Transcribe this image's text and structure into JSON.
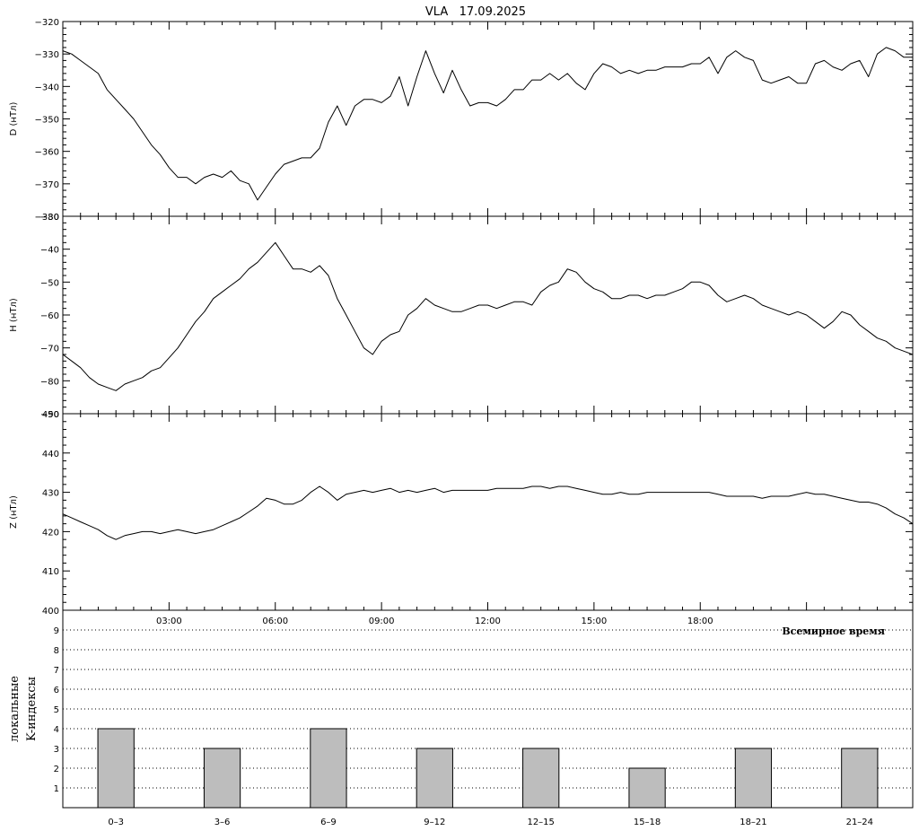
{
  "title": "VLA   17.09.2025",
  "time_axis": {
    "label": "Всемирное время",
    "range_hours": [
      0,
      24
    ],
    "ticks": [
      3,
      6,
      9,
      12,
      15,
      18
    ],
    "tick_labels": [
      "03:00",
      "06:00",
      "09:00",
      "12:00",
      "15:00",
      "18:00"
    ]
  },
  "colors": {
    "line": "#000000",
    "bar_fill": "#bdbdbd",
    "bar_stroke": "#000000",
    "background": "#ffffff"
  },
  "chart_data": [
    {
      "type": "line",
      "ylabel": "D (нТл)",
      "ylim": [
        -380,
        -320
      ],
      "y_ticks": [
        -380,
        -370,
        -360,
        -350,
        -340,
        -330,
        -320
      ],
      "x": [
        0,
        0.25,
        0.5,
        0.75,
        1,
        1.25,
        1.5,
        1.75,
        2,
        2.25,
        2.5,
        2.75,
        3,
        3.25,
        3.5,
        3.75,
        4,
        4.25,
        4.5,
        4.75,
        5,
        5.25,
        5.5,
        5.75,
        6,
        6.25,
        6.5,
        6.75,
        7,
        7.25,
        7.5,
        7.75,
        8,
        8.25,
        8.5,
        8.75,
        9,
        9.25,
        9.5,
        9.75,
        10,
        10.25,
        10.5,
        10.75,
        11,
        11.25,
        11.5,
        11.75,
        12,
        12.25,
        12.5,
        12.75,
        13,
        13.25,
        13.5,
        13.75,
        14,
        14.25,
        14.5,
        14.75,
        15,
        15.25,
        15.5,
        15.75,
        16,
        16.25,
        16.5,
        16.75,
        17,
        17.25,
        17.5,
        17.75,
        18,
        18.25,
        18.5,
        18.75,
        19,
        19.25,
        19.5,
        19.75,
        20,
        20.25,
        20.5,
        20.75,
        21,
        21.25,
        21.5,
        21.75,
        22,
        22.25,
        22.5,
        22.75,
        23,
        23.25,
        23.5,
        23.75,
        24
      ],
      "values": [
        -329,
        -330,
        -332,
        -334,
        -336,
        -341,
        -344,
        -347,
        -350,
        -354,
        -358,
        -361,
        -365,
        -368,
        -368,
        -370,
        -368,
        -367,
        -368,
        -366,
        -369,
        -370,
        -375,
        -371,
        -367,
        -364,
        -363,
        -362,
        -362,
        -359,
        -351,
        -346,
        -352,
        -346,
        -344,
        -344,
        -345,
        -343,
        -337,
        -346,
        -337,
        -329,
        -336,
        -342,
        -335,
        -341,
        -346,
        -345,
        -345,
        -346,
        -344,
        -341,
        -341,
        -338,
        -338,
        -336,
        -338,
        -336,
        -339,
        -341,
        -336,
        -333,
        -334,
        -336,
        -335,
        -336,
        -335,
        -335,
        -334,
        -334,
        -334,
        -333,
        -333,
        -331,
        -336,
        -331,
        -329,
        -331,
        -332,
        -338,
        -339,
        -338,
        -337,
        -339,
        -339,
        -333,
        -332,
        -334,
        -335,
        -333,
        -332,
        -337,
        -330,
        -328,
        -329,
        -331,
        -331
      ]
    },
    {
      "type": "line",
      "ylabel": "H (нТл)",
      "ylim": [
        -90,
        -30
      ],
      "y_ticks": [
        -90,
        -80,
        -70,
        -60,
        -50,
        -40,
        -30
      ],
      "x": [
        0,
        0.25,
        0.5,
        0.75,
        1,
        1.25,
        1.5,
        1.75,
        2,
        2.25,
        2.5,
        2.75,
        3,
        3.25,
        3.5,
        3.75,
        4,
        4.25,
        4.5,
        4.75,
        5,
        5.25,
        5.5,
        5.75,
        6,
        6.25,
        6.5,
        6.75,
        7,
        7.25,
        7.5,
        7.75,
        8,
        8.25,
        8.5,
        8.75,
        9,
        9.25,
        9.5,
        9.75,
        10,
        10.25,
        10.5,
        10.75,
        11,
        11.25,
        11.5,
        11.75,
        12,
        12.25,
        12.5,
        12.75,
        13,
        13.25,
        13.5,
        13.75,
        14,
        14.25,
        14.5,
        14.75,
        15,
        15.25,
        15.5,
        15.75,
        16,
        16.25,
        16.5,
        16.75,
        17,
        17.25,
        17.5,
        17.75,
        18,
        18.25,
        18.5,
        18.75,
        19,
        19.25,
        19.5,
        19.75,
        20,
        20.25,
        20.5,
        20.75,
        21,
        21.25,
        21.5,
        21.75,
        22,
        22.25,
        22.5,
        22.75,
        23,
        23.25,
        23.5,
        23.75,
        24
      ],
      "values": [
        -72,
        -74,
        -76,
        -79,
        -81,
        -82,
        -83,
        -81,
        -80,
        -79,
        -77,
        -76,
        -73,
        -70,
        -66,
        -62,
        -59,
        -55,
        -53,
        -51,
        -49,
        -46,
        -44,
        -41,
        -38,
        -42,
        -46,
        -46,
        -47,
        -45,
        -48,
        -55,
        -60,
        -65,
        -70,
        -72,
        -68,
        -66,
        -65,
        -60,
        -58,
        -55,
        -57,
        -58,
        -59,
        -59,
        -58,
        -57,
        -57,
        -58,
        -57,
        -56,
        -56,
        -57,
        -53,
        -51,
        -50,
        -46,
        -47,
        -50,
        -52,
        -53,
        -55,
        -55,
        -54,
        -54,
        -55,
        -54,
        -54,
        -53,
        -52,
        -50,
        -50,
        -51,
        -54,
        -56,
        -55,
        -54,
        -55,
        -57,
        -58,
        -59,
        -60,
        -59,
        -60,
        -62,
        -64,
        -62,
        -59,
        -60,
        -63,
        -65,
        -67,
        -68,
        -70,
        -71,
        -72
      ]
    },
    {
      "type": "line",
      "ylabel": "Z (нТл)",
      "ylim": [
        400,
        450
      ],
      "y_ticks": [
        400,
        410,
        420,
        430,
        440,
        450
      ],
      "x": [
        0,
        0.25,
        0.5,
        0.75,
        1,
        1.25,
        1.5,
        1.75,
        2,
        2.25,
        2.5,
        2.75,
        3,
        3.25,
        3.5,
        3.75,
        4,
        4.25,
        4.5,
        4.75,
        5,
        5.25,
        5.5,
        5.75,
        6,
        6.25,
        6.5,
        6.75,
        7,
        7.25,
        7.5,
        7.75,
        8,
        8.25,
        8.5,
        8.75,
        9,
        9.25,
        9.5,
        9.75,
        10,
        10.25,
        10.5,
        10.75,
        11,
        11.25,
        11.5,
        11.75,
        12,
        12.25,
        12.5,
        12.75,
        13,
        13.25,
        13.5,
        13.75,
        14,
        14.25,
        14.5,
        14.75,
        15,
        15.25,
        15.5,
        15.75,
        16,
        16.25,
        16.5,
        16.75,
        17,
        17.25,
        17.5,
        17.75,
        18,
        18.25,
        18.5,
        18.75,
        19,
        19.25,
        19.5,
        19.75,
        20,
        20.25,
        20.5,
        20.75,
        21,
        21.25,
        21.5,
        21.75,
        22,
        22.25,
        22.5,
        22.75,
        23,
        23.25,
        23.5,
        23.75,
        24
      ],
      "values": [
        424.5,
        423.5,
        422.5,
        421.5,
        420.5,
        419,
        418,
        419,
        419.5,
        420,
        420,
        419.5,
        420,
        420.5,
        420,
        419.5,
        420,
        420.5,
        421.5,
        422.5,
        423.5,
        425,
        426.5,
        428.5,
        428,
        427,
        427,
        428,
        430,
        431.5,
        430,
        428,
        429.5,
        430,
        430.5,
        430,
        430.5,
        431,
        430,
        430.5,
        430,
        430.5,
        431,
        430,
        430.5,
        430.5,
        430.5,
        430.5,
        430.5,
        431,
        431,
        431,
        431,
        431.5,
        431.5,
        431,
        431.5,
        431.5,
        431,
        430.5,
        430,
        429.5,
        429.5,
        430,
        429.5,
        429.5,
        430,
        430,
        430,
        430,
        430,
        430,
        430,
        430,
        429.5,
        429,
        429,
        429,
        429,
        428.5,
        429,
        429,
        429,
        429.5,
        430,
        429.5,
        429.5,
        429,
        428.5,
        428,
        427.5,
        427.5,
        427,
        426,
        424.5,
        423.5,
        422
      ]
    },
    {
      "type": "bar",
      "ylabel": "локальные\nK-индексы",
      "ylim": [
        0,
        10
      ],
      "y_ticks": [
        1,
        2,
        3,
        4,
        5,
        6,
        7,
        8,
        9
      ],
      "grid": "dotted-horizontal",
      "categories": [
        "0–3",
        "3–6",
        "6–9",
        "9–12",
        "12–15",
        "15–18",
        "18–21",
        "21–24"
      ],
      "values": [
        4,
        3,
        4,
        3,
        3,
        2,
        3,
        3
      ]
    }
  ]
}
